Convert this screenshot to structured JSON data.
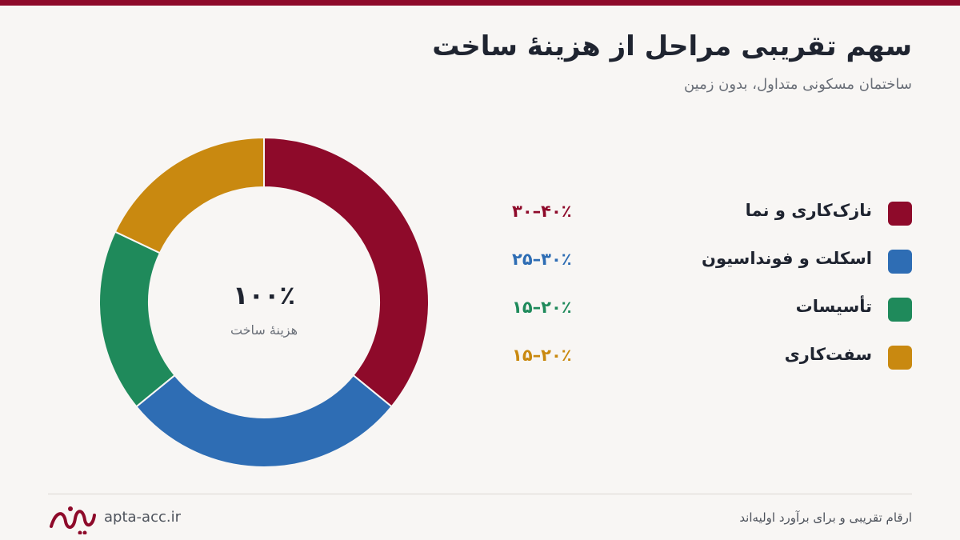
{
  "header": {
    "title": "سهم تقریبی مراحل از هزینهٔ ساخت",
    "subtitle": "ساختمان مسکونی متداول، بدون زمین"
  },
  "chart_data": {
    "type": "pie",
    "center_value": "۱۰۰٪",
    "center_label": "هزینهٔ ساخت",
    "series": [
      {
        "name": "نازک‌کاری و نما",
        "range": "۳۰–۴۰٪",
        "value": 35,
        "color": "#8e0a2a"
      },
      {
        "name": "اسکلت و فونداسیون",
        "range": "۲۵–۳۰٪",
        "value": 27.5,
        "color": "#2e6db4"
      },
      {
        "name": "تأسیسات",
        "range": "۱۵–۲۰٪",
        "value": 17.5,
        "color": "#1f8a5b"
      },
      {
        "name": "سفت‌کاری",
        "range": "۱۵–۲۰٪",
        "value": 17.5,
        "color": "#c98910"
      }
    ]
  },
  "footer": {
    "note": "ارقام تقریبی و برای برآورد اولیه‌اند",
    "site": "apta-acc.ir",
    "logo_text": "آپتا"
  }
}
